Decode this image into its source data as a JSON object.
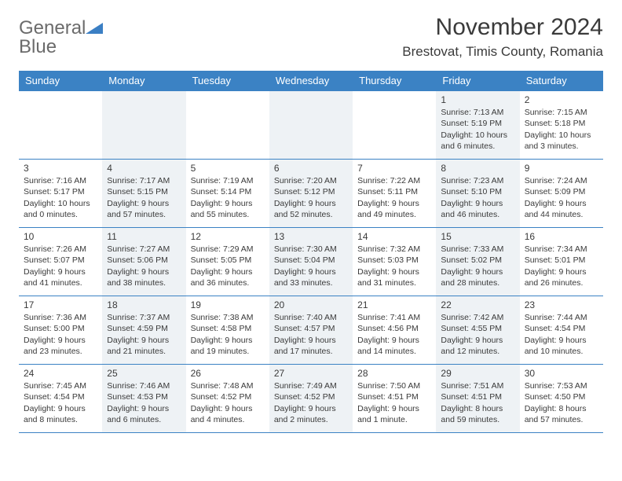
{
  "logo": {
    "text_general": "General",
    "text_blue": "Blue"
  },
  "title": "November 2024",
  "location": "Brestovat, Timis County, Romania",
  "colors": {
    "header_bg": "#3b82c4",
    "header_text": "#ffffff",
    "grid_line": "#3b82c4",
    "shaded_bg": "#eef2f5",
    "text": "#3a3a3a",
    "logo_gray": "#6b6b6b",
    "logo_blue": "#3b7fc4"
  },
  "day_names": [
    "Sunday",
    "Monday",
    "Tuesday",
    "Wednesday",
    "Thursday",
    "Friday",
    "Saturday"
  ],
  "weeks": [
    [
      {
        "num": "",
        "sunrise": "",
        "sunset": "",
        "daylight": ""
      },
      {
        "num": "",
        "sunrise": "",
        "sunset": "",
        "daylight": ""
      },
      {
        "num": "",
        "sunrise": "",
        "sunset": "",
        "daylight": ""
      },
      {
        "num": "",
        "sunrise": "",
        "sunset": "",
        "daylight": ""
      },
      {
        "num": "",
        "sunrise": "",
        "sunset": "",
        "daylight": ""
      },
      {
        "num": "1",
        "sunrise": "Sunrise: 7:13 AM",
        "sunset": "Sunset: 5:19 PM",
        "daylight": "Daylight: 10 hours and 6 minutes."
      },
      {
        "num": "2",
        "sunrise": "Sunrise: 7:15 AM",
        "sunset": "Sunset: 5:18 PM",
        "daylight": "Daylight: 10 hours and 3 minutes."
      }
    ],
    [
      {
        "num": "3",
        "sunrise": "Sunrise: 7:16 AM",
        "sunset": "Sunset: 5:17 PM",
        "daylight": "Daylight: 10 hours and 0 minutes."
      },
      {
        "num": "4",
        "sunrise": "Sunrise: 7:17 AM",
        "sunset": "Sunset: 5:15 PM",
        "daylight": "Daylight: 9 hours and 57 minutes."
      },
      {
        "num": "5",
        "sunrise": "Sunrise: 7:19 AM",
        "sunset": "Sunset: 5:14 PM",
        "daylight": "Daylight: 9 hours and 55 minutes."
      },
      {
        "num": "6",
        "sunrise": "Sunrise: 7:20 AM",
        "sunset": "Sunset: 5:12 PM",
        "daylight": "Daylight: 9 hours and 52 minutes."
      },
      {
        "num": "7",
        "sunrise": "Sunrise: 7:22 AM",
        "sunset": "Sunset: 5:11 PM",
        "daylight": "Daylight: 9 hours and 49 minutes."
      },
      {
        "num": "8",
        "sunrise": "Sunrise: 7:23 AM",
        "sunset": "Sunset: 5:10 PM",
        "daylight": "Daylight: 9 hours and 46 minutes."
      },
      {
        "num": "9",
        "sunrise": "Sunrise: 7:24 AM",
        "sunset": "Sunset: 5:09 PM",
        "daylight": "Daylight: 9 hours and 44 minutes."
      }
    ],
    [
      {
        "num": "10",
        "sunrise": "Sunrise: 7:26 AM",
        "sunset": "Sunset: 5:07 PM",
        "daylight": "Daylight: 9 hours and 41 minutes."
      },
      {
        "num": "11",
        "sunrise": "Sunrise: 7:27 AM",
        "sunset": "Sunset: 5:06 PM",
        "daylight": "Daylight: 9 hours and 38 minutes."
      },
      {
        "num": "12",
        "sunrise": "Sunrise: 7:29 AM",
        "sunset": "Sunset: 5:05 PM",
        "daylight": "Daylight: 9 hours and 36 minutes."
      },
      {
        "num": "13",
        "sunrise": "Sunrise: 7:30 AM",
        "sunset": "Sunset: 5:04 PM",
        "daylight": "Daylight: 9 hours and 33 minutes."
      },
      {
        "num": "14",
        "sunrise": "Sunrise: 7:32 AM",
        "sunset": "Sunset: 5:03 PM",
        "daylight": "Daylight: 9 hours and 31 minutes."
      },
      {
        "num": "15",
        "sunrise": "Sunrise: 7:33 AM",
        "sunset": "Sunset: 5:02 PM",
        "daylight": "Daylight: 9 hours and 28 minutes."
      },
      {
        "num": "16",
        "sunrise": "Sunrise: 7:34 AM",
        "sunset": "Sunset: 5:01 PM",
        "daylight": "Daylight: 9 hours and 26 minutes."
      }
    ],
    [
      {
        "num": "17",
        "sunrise": "Sunrise: 7:36 AM",
        "sunset": "Sunset: 5:00 PM",
        "daylight": "Daylight: 9 hours and 23 minutes."
      },
      {
        "num": "18",
        "sunrise": "Sunrise: 7:37 AM",
        "sunset": "Sunset: 4:59 PM",
        "daylight": "Daylight: 9 hours and 21 minutes."
      },
      {
        "num": "19",
        "sunrise": "Sunrise: 7:38 AM",
        "sunset": "Sunset: 4:58 PM",
        "daylight": "Daylight: 9 hours and 19 minutes."
      },
      {
        "num": "20",
        "sunrise": "Sunrise: 7:40 AM",
        "sunset": "Sunset: 4:57 PM",
        "daylight": "Daylight: 9 hours and 17 minutes."
      },
      {
        "num": "21",
        "sunrise": "Sunrise: 7:41 AM",
        "sunset": "Sunset: 4:56 PM",
        "daylight": "Daylight: 9 hours and 14 minutes."
      },
      {
        "num": "22",
        "sunrise": "Sunrise: 7:42 AM",
        "sunset": "Sunset: 4:55 PM",
        "daylight": "Daylight: 9 hours and 12 minutes."
      },
      {
        "num": "23",
        "sunrise": "Sunrise: 7:44 AM",
        "sunset": "Sunset: 4:54 PM",
        "daylight": "Daylight: 9 hours and 10 minutes."
      }
    ],
    [
      {
        "num": "24",
        "sunrise": "Sunrise: 7:45 AM",
        "sunset": "Sunset: 4:54 PM",
        "daylight": "Daylight: 9 hours and 8 minutes."
      },
      {
        "num": "25",
        "sunrise": "Sunrise: 7:46 AM",
        "sunset": "Sunset: 4:53 PM",
        "daylight": "Daylight: 9 hours and 6 minutes."
      },
      {
        "num": "26",
        "sunrise": "Sunrise: 7:48 AM",
        "sunset": "Sunset: 4:52 PM",
        "daylight": "Daylight: 9 hours and 4 minutes."
      },
      {
        "num": "27",
        "sunrise": "Sunrise: 7:49 AM",
        "sunset": "Sunset: 4:52 PM",
        "daylight": "Daylight: 9 hours and 2 minutes."
      },
      {
        "num": "28",
        "sunrise": "Sunrise: 7:50 AM",
        "sunset": "Sunset: 4:51 PM",
        "daylight": "Daylight: 9 hours and 1 minute."
      },
      {
        "num": "29",
        "sunrise": "Sunrise: 7:51 AM",
        "sunset": "Sunset: 4:51 PM",
        "daylight": "Daylight: 8 hours and 59 minutes."
      },
      {
        "num": "30",
        "sunrise": "Sunrise: 7:53 AM",
        "sunset": "Sunset: 4:50 PM",
        "daylight": "Daylight: 8 hours and 57 minutes."
      }
    ]
  ],
  "shaded_columns": [
    1,
    3,
    5
  ]
}
